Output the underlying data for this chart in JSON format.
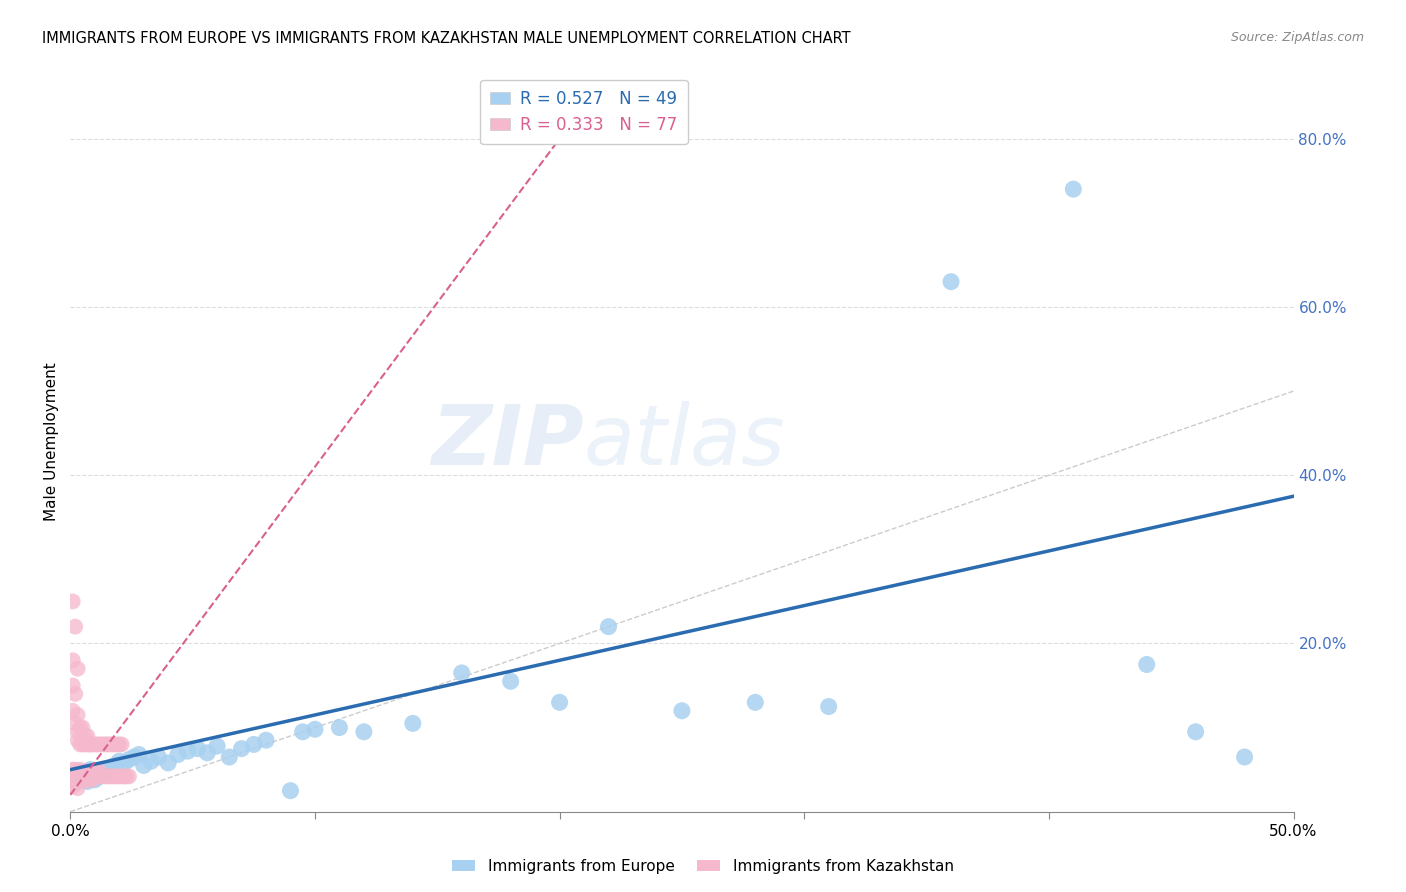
{
  "title": "IMMIGRANTS FROM EUROPE VS IMMIGRANTS FROM KAZAKHSTAN MALE UNEMPLOYMENT CORRELATION CHART",
  "source": "Source: ZipAtlas.com",
  "ylabel": "Male Unemployment",
  "y_ticks": [
    0.0,
    0.2,
    0.4,
    0.6,
    0.8
  ],
  "y_tick_labels": [
    "",
    "20.0%",
    "40.0%",
    "60.0%",
    "80.0%"
  ],
  "x_range": [
    0.0,
    0.5
  ],
  "y_range": [
    0.0,
    0.88
  ],
  "europe_R": 0.527,
  "europe_N": 49,
  "kazakhstan_R": 0.333,
  "kazakhstan_N": 77,
  "europe_color": "#A8D0F0",
  "europe_line_color": "#2B6CB0",
  "kazakhstan_color": "#F5B8CC",
  "kazakhstan_line_color": "#D96090",
  "watermark_color": "#DCE8F5",
  "europe_line_x0": 0.0,
  "europe_line_y0": 0.05,
  "europe_line_x1": 0.5,
  "europe_line_y1": 0.375,
  "kaz_line_x0": 0.0,
  "kaz_line_y0": 0.02,
  "kaz_line_x1": 0.2,
  "kaz_line_y1": 0.8,
  "diag_color": "#CCCCCC",
  "europe_x": [
    0.002,
    0.003,
    0.004,
    0.005,
    0.006,
    0.007,
    0.008,
    0.009,
    0.01,
    0.012,
    0.014,
    0.016,
    0.018,
    0.02,
    0.022,
    0.024,
    0.026,
    0.028,
    0.03,
    0.033,
    0.036,
    0.04,
    0.044,
    0.048,
    0.052,
    0.056,
    0.06,
    0.065,
    0.07,
    0.075,
    0.08,
    0.09,
    0.095,
    0.1,
    0.11,
    0.12,
    0.14,
    0.16,
    0.18,
    0.2,
    0.22,
    0.25,
    0.28,
    0.31,
    0.36,
    0.41,
    0.44,
    0.46,
    0.48
  ],
  "europe_y": [
    0.035,
    0.04,
    0.045,
    0.038,
    0.042,
    0.036,
    0.05,
    0.045,
    0.038,
    0.042,
    0.048,
    0.052,
    0.055,
    0.06,
    0.058,
    0.062,
    0.065,
    0.068,
    0.055,
    0.06,
    0.065,
    0.058,
    0.068,
    0.072,
    0.075,
    0.07,
    0.078,
    0.065,
    0.075,
    0.08,
    0.085,
    0.025,
    0.095,
    0.098,
    0.1,
    0.095,
    0.105,
    0.165,
    0.155,
    0.13,
    0.22,
    0.12,
    0.13,
    0.125,
    0.63,
    0.74,
    0.175,
    0.095,
    0.065
  ],
  "kazakhstan_x": [
    0.001,
    0.001,
    0.001,
    0.001,
    0.001,
    0.002,
    0.002,
    0.002,
    0.002,
    0.003,
    0.003,
    0.003,
    0.003,
    0.004,
    0.004,
    0.004,
    0.005,
    0.005,
    0.005,
    0.006,
    0.006,
    0.006,
    0.007,
    0.007,
    0.008,
    0.008,
    0.009,
    0.01,
    0.01,
    0.011,
    0.012,
    0.013,
    0.014,
    0.015,
    0.016,
    0.017,
    0.018,
    0.019,
    0.02,
    0.021,
    0.022,
    0.023,
    0.024,
    0.001,
    0.001,
    0.001,
    0.001,
    0.002,
    0.002,
    0.002,
    0.003,
    0.003,
    0.003,
    0.003,
    0.004,
    0.004,
    0.005,
    0.005,
    0.006,
    0.006,
    0.007,
    0.007,
    0.008,
    0.008,
    0.009,
    0.01,
    0.011,
    0.012,
    0.013,
    0.014,
    0.015,
    0.016,
    0.017,
    0.018,
    0.019,
    0.02,
    0.021
  ],
  "kazakhstan_y": [
    0.035,
    0.04,
    0.045,
    0.05,
    0.03,
    0.035,
    0.04,
    0.045,
    0.05,
    0.035,
    0.04,
    0.045,
    0.028,
    0.038,
    0.042,
    0.05,
    0.038,
    0.042,
    0.048,
    0.038,
    0.042,
    0.048,
    0.038,
    0.042,
    0.038,
    0.042,
    0.038,
    0.042,
    0.048,
    0.042,
    0.048,
    0.042,
    0.042,
    0.042,
    0.042,
    0.042,
    0.042,
    0.042,
    0.042,
    0.042,
    0.042,
    0.042,
    0.042,
    0.12,
    0.15,
    0.18,
    0.25,
    0.105,
    0.14,
    0.22,
    0.085,
    0.095,
    0.115,
    0.17,
    0.08,
    0.1,
    0.08,
    0.1,
    0.08,
    0.09,
    0.08,
    0.09,
    0.08,
    0.08,
    0.08,
    0.08,
    0.08,
    0.08,
    0.08,
    0.08,
    0.08,
    0.08,
    0.08,
    0.08,
    0.08,
    0.08,
    0.08
  ]
}
